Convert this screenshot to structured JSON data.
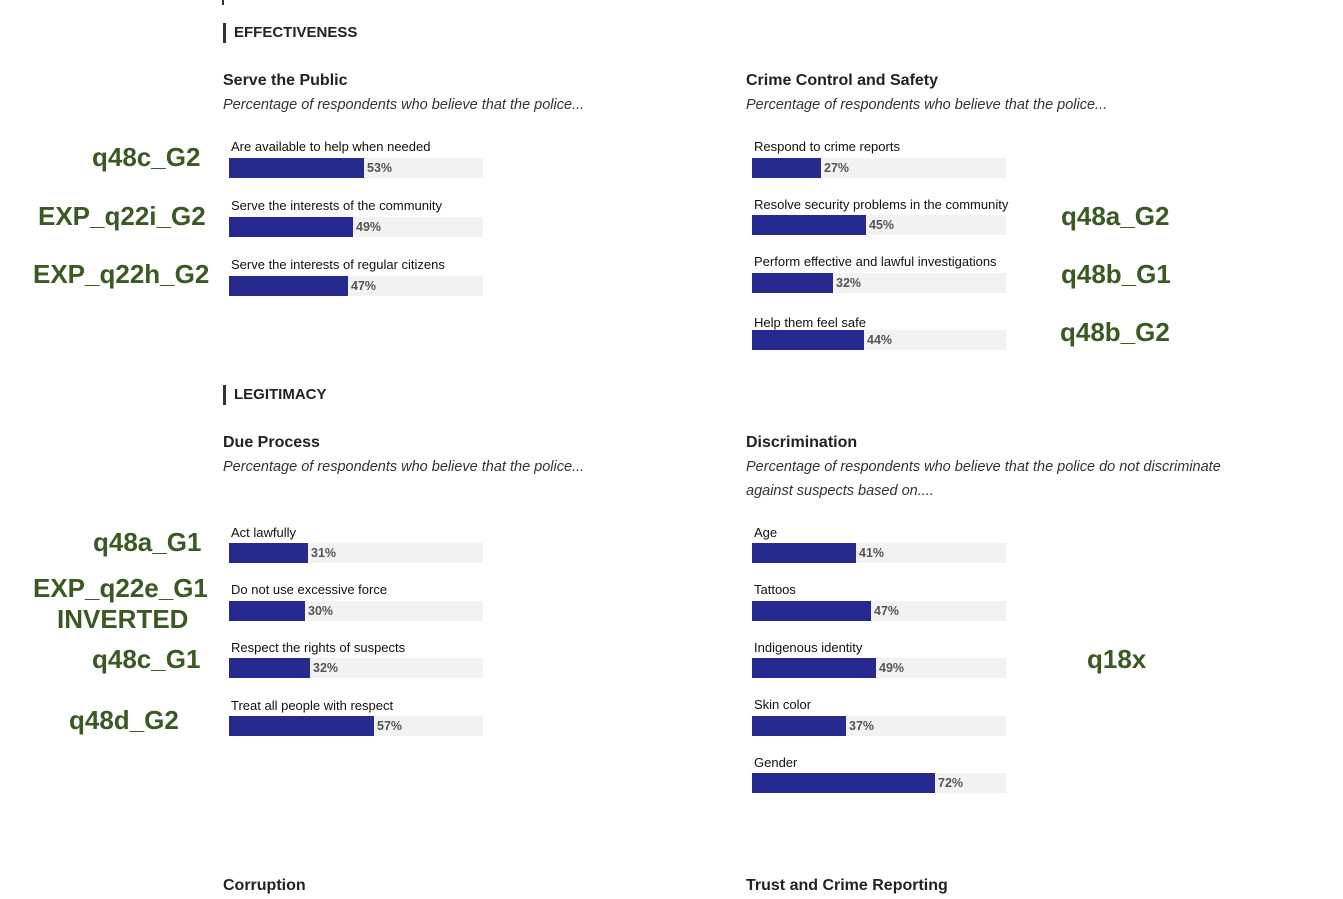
{
  "sections": {
    "effectiveness": "EFFECTIVENESS",
    "legitimacy": "LEGITIMACY"
  },
  "serve_public": {
    "title": "Serve the Public",
    "subtitle": "Percentage of respondents who believe that the police...",
    "items": [
      {
        "label": "Are available to help when needed",
        "value": 53,
        "value_text": "53%"
      },
      {
        "label": "Serve the interests of the community",
        "value": 49,
        "value_text": "49%"
      },
      {
        "label": "Serve the interests of regular citizens",
        "value": 47,
        "value_text": "47%"
      }
    ]
  },
  "crime_control": {
    "title": "Crime Control and Safety",
    "subtitle": "Percentage of respondents who believe that the police...",
    "items": [
      {
        "label": "Respond to crime reports",
        "value": 27,
        "value_text": "27%"
      },
      {
        "label": "Resolve security problems in the community",
        "value": 45,
        "value_text": "45%"
      },
      {
        "label": "Perform effective and lawful investigations",
        "value": 32,
        "value_text": "32%"
      },
      {
        "label": "Help them feel safe",
        "value": 44,
        "value_text": "44%"
      }
    ]
  },
  "due_process": {
    "title": "Due Process",
    "subtitle": "Percentage of respondents who believe that the police...",
    "items": [
      {
        "label": "Act lawfully",
        "value": 31,
        "value_text": "31%"
      },
      {
        "label": "Do not use excessive force",
        "value": 30,
        "value_text": "30%"
      },
      {
        "label": "Respect the rights of suspects",
        "value": 32,
        "value_text": "32%"
      },
      {
        "label": "Treat all people with respect",
        "value": 57,
        "value_text": "57%"
      }
    ]
  },
  "discrimination": {
    "title": "Discrimination",
    "subtitle_line1": "Percentage of respondents who believe that the police do not discriminate",
    "subtitle_line2": "against suspects based on....",
    "items": [
      {
        "label": "Age",
        "value": 41,
        "value_text": "41%"
      },
      {
        "label": "Tattoos",
        "value": 47,
        "value_text": "47%"
      },
      {
        "label": "Indigenous identity",
        "value": 49,
        "value_text": "49%"
      },
      {
        "label": "Skin color",
        "value": 37,
        "value_text": "37%"
      },
      {
        "label": "Gender",
        "value": 72,
        "value_text": "72%"
      }
    ]
  },
  "bottom_titles": {
    "corruption": "Corruption",
    "trust": "Trust and Crime Reporting"
  },
  "var_labels": {
    "q48c_g2": "q48c_G2",
    "exp_q22i_g2": "EXP_q22i_G2",
    "exp_q22h_g2": "EXP_q22h_G2",
    "q48a_g2": "q48a_G2",
    "q48b_g1": "q48b_G1",
    "q48b_g2": "q48b_G2",
    "q48a_g1": "q48a_G1",
    "exp_q22e_g1": "EXP_q22e_G1",
    "inverted": "INVERTED",
    "q48c_g1": "q48c_G1",
    "q48d_g2": "q48d_G2",
    "q18x": "q18x"
  },
  "colors": {
    "bar": "#262a8f",
    "track": "#f2f2f2",
    "annotation": "#3b5a23"
  }
}
